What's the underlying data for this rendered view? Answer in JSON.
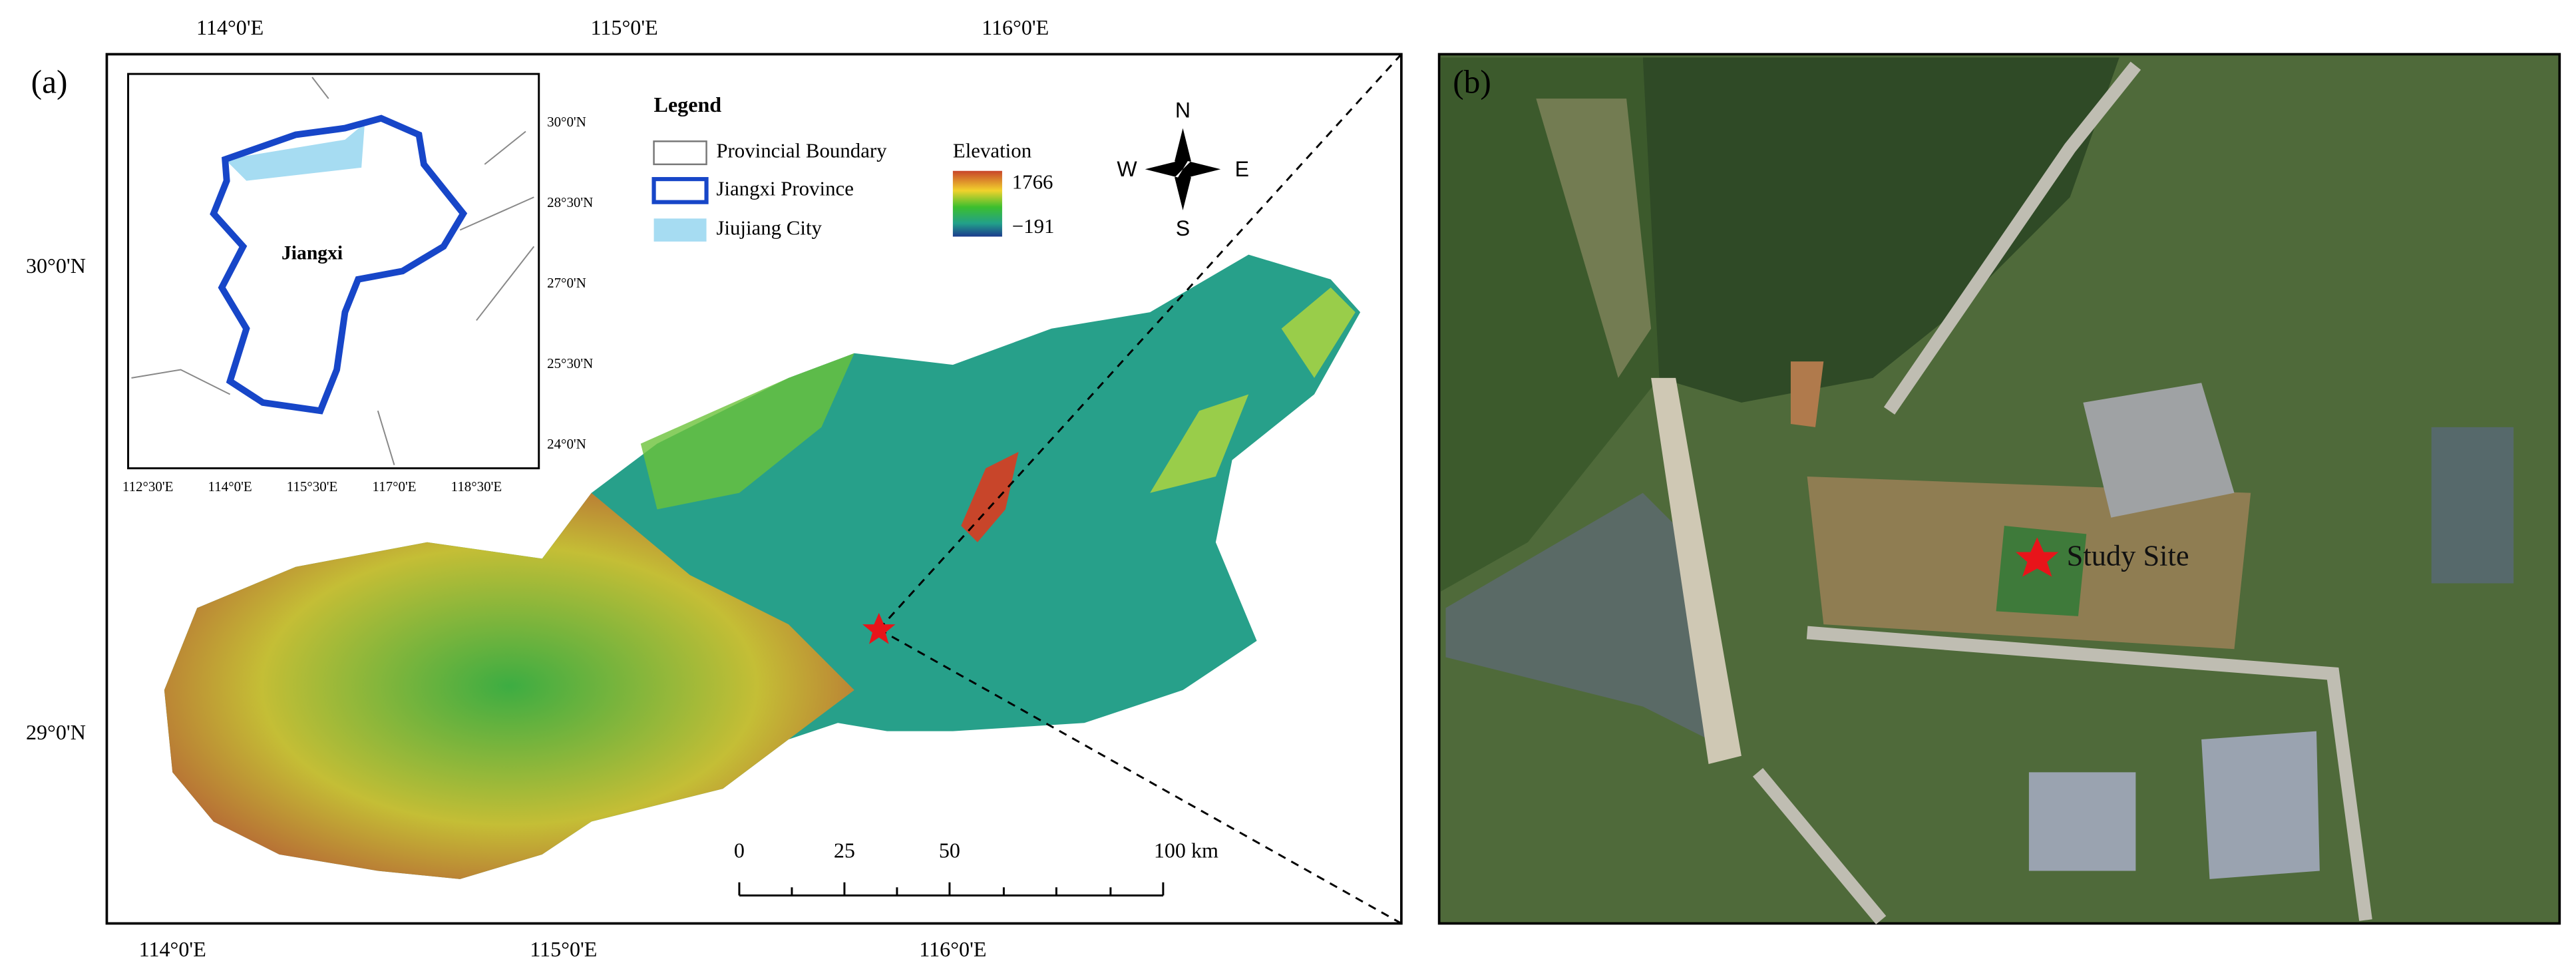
{
  "panel_a": {
    "label": "(a)",
    "top_axis": [
      "114°0'E",
      "115°0'E",
      "116°0'E"
    ],
    "bottom_axis": [
      "114°0'E",
      "115°0'E",
      "116°0'E"
    ],
    "left_axis": [
      "30°0'N",
      "29°0'N"
    ],
    "inset": {
      "name": "Jiangxi",
      "right_axis": [
        "30°0'N",
        "28°30'N",
        "27°0'N",
        "25°30'N",
        "24°0'N"
      ],
      "bottom_axis": [
        "112°30'E",
        "114°0'E",
        "115°30'E",
        "117°0'E",
        "118°30'E"
      ]
    },
    "legend": {
      "title": "Legend",
      "items": [
        "Provincial Boundary",
        "Jiangxi Province",
        "Jiujiang City"
      ],
      "elevation": {
        "title": "Elevation",
        "max": "1766",
        "min": "−191"
      }
    },
    "compass": {
      "north": "N",
      "south": "S",
      "west": "W",
      "east": "E"
    },
    "scale_bar": [
      "0",
      "25",
      "50",
      "100 km"
    ]
  },
  "panel_b": {
    "label": "(b)",
    "site": "Study Site"
  }
}
